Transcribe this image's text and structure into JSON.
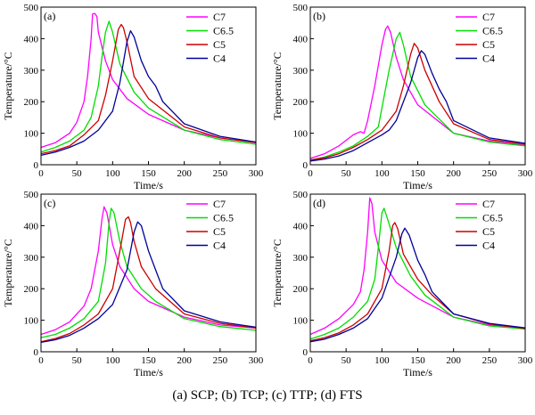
{
  "caption": "(a) SCP; (b) TCP; (c) TTP; (d) FTS",
  "chart_data": [
    {
      "type": "line",
      "panel_label": "(a)",
      "xlabel": "Time/s",
      "ylabel": "Temperature/°C",
      "xlim": [
        0,
        300
      ],
      "ylim": [
        0,
        500
      ],
      "xticks": [
        0,
        50,
        100,
        150,
        200,
        250,
        300
      ],
      "yticks": [
        0,
        100,
        200,
        300,
        400,
        500
      ],
      "legend_position": "top-right",
      "series": [
        {
          "name": "C7",
          "color": "#ff00ff",
          "x": [
            0,
            20,
            40,
            50,
            60,
            65,
            70,
            72,
            75,
            78,
            80,
            90,
            100,
            120,
            150,
            200,
            250,
            300
          ],
          "y": [
            55,
            70,
            100,
            135,
            200,
            280,
            400,
            478,
            480,
            470,
            420,
            330,
            270,
            210,
            160,
            110,
            85,
            70
          ]
        },
        {
          "name": "C6.5",
          "color": "#00dd00",
          "x": [
            0,
            20,
            40,
            60,
            70,
            80,
            85,
            90,
            95,
            100,
            110,
            130,
            150,
            200,
            250,
            300
          ],
          "y": [
            40,
            55,
            75,
            110,
            150,
            250,
            340,
            420,
            455,
            420,
            320,
            230,
            180,
            110,
            80,
            65
          ]
        },
        {
          "name": "C5",
          "color": "#cc0000",
          "x": [
            0,
            20,
            40,
            60,
            80,
            90,
            100,
            108,
            112,
            115,
            120,
            130,
            150,
            200,
            250,
            300
          ],
          "y": [
            35,
            45,
            60,
            95,
            140,
            220,
            330,
            430,
            445,
            435,
            390,
            280,
            210,
            120,
            85,
            70
          ]
        },
        {
          "name": "C4",
          "color": "#000099",
          "x": [
            0,
            20,
            40,
            60,
            80,
            100,
            110,
            120,
            125,
            130,
            140,
            150,
            160,
            170,
            200,
            250,
            300
          ],
          "y": [
            30,
            40,
            55,
            75,
            110,
            170,
            260,
            390,
            425,
            405,
            330,
            280,
            250,
            200,
            130,
            90,
            72
          ]
        }
      ]
    },
    {
      "type": "line",
      "panel_label": "(b)",
      "xlabel": "Time/s",
      "ylabel": "Temperature/°C",
      "xlim": [
        0,
        300
      ],
      "ylim": [
        0,
        500
      ],
      "xticks": [
        0,
        50,
        100,
        150,
        200,
        250,
        300
      ],
      "yticks": [
        0,
        100,
        200,
        300,
        400,
        500
      ],
      "legend_position": "top-right",
      "series": [
        {
          "name": "C7",
          "color": "#ff00ff",
          "x": [
            0,
            20,
            40,
            60,
            70,
            75,
            80,
            90,
            100,
            105,
            108,
            112,
            120,
            130,
            150,
            200,
            250,
            300
          ],
          "y": [
            20,
            35,
            60,
            95,
            105,
            100,
            140,
            250,
            380,
            430,
            440,
            420,
            340,
            270,
            190,
            100,
            75,
            62
          ]
        },
        {
          "name": "C6.5",
          "color": "#00dd00",
          "x": [
            0,
            20,
            40,
            60,
            80,
            95,
            100,
            110,
            120,
            125,
            130,
            140,
            160,
            200,
            250,
            300
          ],
          "y": [
            15,
            25,
            40,
            60,
            90,
            120,
            180,
            300,
            400,
            420,
            380,
            280,
            190,
            100,
            72,
            60
          ]
        },
        {
          "name": "C5",
          "color": "#cc0000",
          "x": [
            0,
            20,
            40,
            60,
            80,
            100,
            120,
            130,
            140,
            145,
            150,
            160,
            180,
            200,
            250,
            300
          ],
          "y": [
            15,
            22,
            35,
            55,
            80,
            110,
            170,
            250,
            350,
            385,
            370,
            300,
            200,
            130,
            80,
            65
          ]
        },
        {
          "name": "C4",
          "color": "#000099",
          "x": [
            0,
            20,
            40,
            60,
            80,
            100,
            110,
            120,
            140,
            150,
            155,
            160,
            170,
            180,
            190,
            200,
            250,
            300
          ],
          "y": [
            12,
            18,
            28,
            45,
            70,
            95,
            110,
            140,
            260,
            340,
            362,
            350,
            290,
            240,
            200,
            140,
            85,
            68
          ]
        }
      ]
    },
    {
      "type": "line",
      "panel_label": "(c)",
      "xlabel": "Time/s",
      "ylabel": "Temperature/°C",
      "xlim": [
        0,
        300
      ],
      "ylim": [
        0,
        500
      ],
      "xticks": [
        0,
        50,
        100,
        150,
        200,
        250,
        300
      ],
      "yticks": [
        0,
        100,
        200,
        300,
        400,
        500
      ],
      "legend_position": "top-right",
      "series": [
        {
          "name": "C7",
          "color": "#ff00ff",
          "x": [
            0,
            20,
            40,
            60,
            70,
            80,
            85,
            88,
            92,
            100,
            110,
            130,
            150,
            200,
            250,
            300
          ],
          "y": [
            55,
            70,
            95,
            145,
            200,
            320,
            420,
            460,
            440,
            340,
            270,
            200,
            160,
            110,
            85,
            75
          ]
        },
        {
          "name": "C6.5",
          "color": "#00dd00",
          "x": [
            0,
            20,
            40,
            60,
            80,
            90,
            95,
            98,
            102,
            110,
            120,
            140,
            160,
            200,
            250,
            300
          ],
          "y": [
            45,
            55,
            75,
            105,
            160,
            280,
            410,
            455,
            440,
            350,
            270,
            200,
            160,
            105,
            80,
            68
          ]
        },
        {
          "name": "C5",
          "color": "#cc0000",
          "x": [
            0,
            20,
            40,
            60,
            80,
            100,
            110,
            118,
            122,
            125,
            130,
            140,
            160,
            200,
            250,
            300
          ],
          "y": [
            32,
            42,
            58,
            85,
            120,
            200,
            320,
            420,
            428,
            410,
            350,
            270,
            200,
            120,
            90,
            75
          ]
        },
        {
          "name": "C4",
          "color": "#000099",
          "x": [
            0,
            20,
            40,
            60,
            80,
            100,
            120,
            130,
            135,
            140,
            150,
            160,
            170,
            200,
            250,
            300
          ],
          "y": [
            30,
            38,
            52,
            75,
            105,
            150,
            260,
            380,
            412,
            400,
            320,
            260,
            200,
            130,
            95,
            78
          ]
        }
      ]
    },
    {
      "type": "line",
      "panel_label": "(d)",
      "xlabel": "Time/s",
      "ylabel": "Temperature/°C",
      "xlim": [
        0,
        300
      ],
      "ylim": [
        0,
        500
      ],
      "xticks": [
        0,
        50,
        100,
        150,
        200,
        250,
        300
      ],
      "yticks": [
        0,
        100,
        200,
        300,
        400,
        500
      ],
      "legend_position": "top-right",
      "series": [
        {
          "name": "C7",
          "color": "#ff00ff",
          "x": [
            0,
            20,
            40,
            60,
            70,
            75,
            80,
            83,
            86,
            90,
            100,
            120,
            150,
            200,
            250,
            300
          ],
          "y": [
            55,
            75,
            105,
            150,
            190,
            260,
            380,
            488,
            470,
            380,
            290,
            220,
            170,
            110,
            85,
            75
          ]
        },
        {
          "name": "C6.5",
          "color": "#00dd00",
          "x": [
            0,
            20,
            40,
            60,
            80,
            90,
            95,
            100,
            103,
            108,
            120,
            140,
            160,
            200,
            250,
            300
          ],
          "y": [
            40,
            55,
            75,
            110,
            160,
            230,
            330,
            440,
            455,
            420,
            330,
            240,
            180,
            110,
            82,
            72
          ]
        },
        {
          "name": "C5",
          "color": "#cc0000",
          "x": [
            0,
            20,
            40,
            60,
            80,
            100,
            110,
            115,
            118,
            122,
            130,
            150,
            170,
            200,
            250,
            300
          ],
          "y": [
            35,
            45,
            60,
            85,
            120,
            200,
            320,
            400,
            410,
            390,
            310,
            230,
            180,
            120,
            88,
            74
          ]
        },
        {
          "name": "C4",
          "color": "#000099",
          "x": [
            0,
            20,
            40,
            60,
            80,
            100,
            120,
            128,
            132,
            138,
            150,
            160,
            170,
            200,
            250,
            300
          ],
          "y": [
            32,
            40,
            55,
            75,
            105,
            170,
            300,
            375,
            392,
            370,
            290,
            245,
            190,
            120,
            90,
            76
          ]
        }
      ]
    }
  ]
}
